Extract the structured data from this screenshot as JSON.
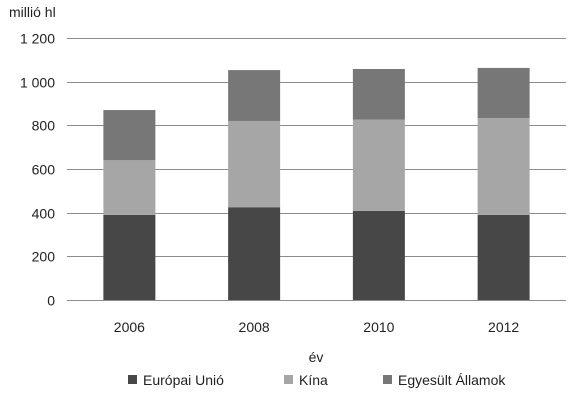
{
  "chart_data": {
    "type": "bar",
    "stacked": true,
    "title": "",
    "ylabel": "millió hl",
    "xlabel": "év",
    "ylim": [
      0,
      1200
    ],
    "yticks": [
      0,
      200,
      400,
      600,
      800,
      1000,
      1200
    ],
    "ytick_labels": [
      "0",
      "200",
      "400",
      "600",
      "800",
      "1 000",
      "1 200"
    ],
    "grid": true,
    "legend_position": "bottom",
    "categories": [
      "2006",
      "2008",
      "2010",
      "2012"
    ],
    "series": [
      {
        "name": "Európai Unió",
        "color": "#474747",
        "values": [
          390,
          425,
          408,
          390
        ]
      },
      {
        "name": "Kína",
        "color": "#a6a6a6",
        "values": [
          250,
          395,
          418,
          443
        ]
      },
      {
        "name": "Egyesült Államok",
        "color": "#777777",
        "values": [
          230,
          233,
          232,
          230
        ]
      }
    ]
  }
}
